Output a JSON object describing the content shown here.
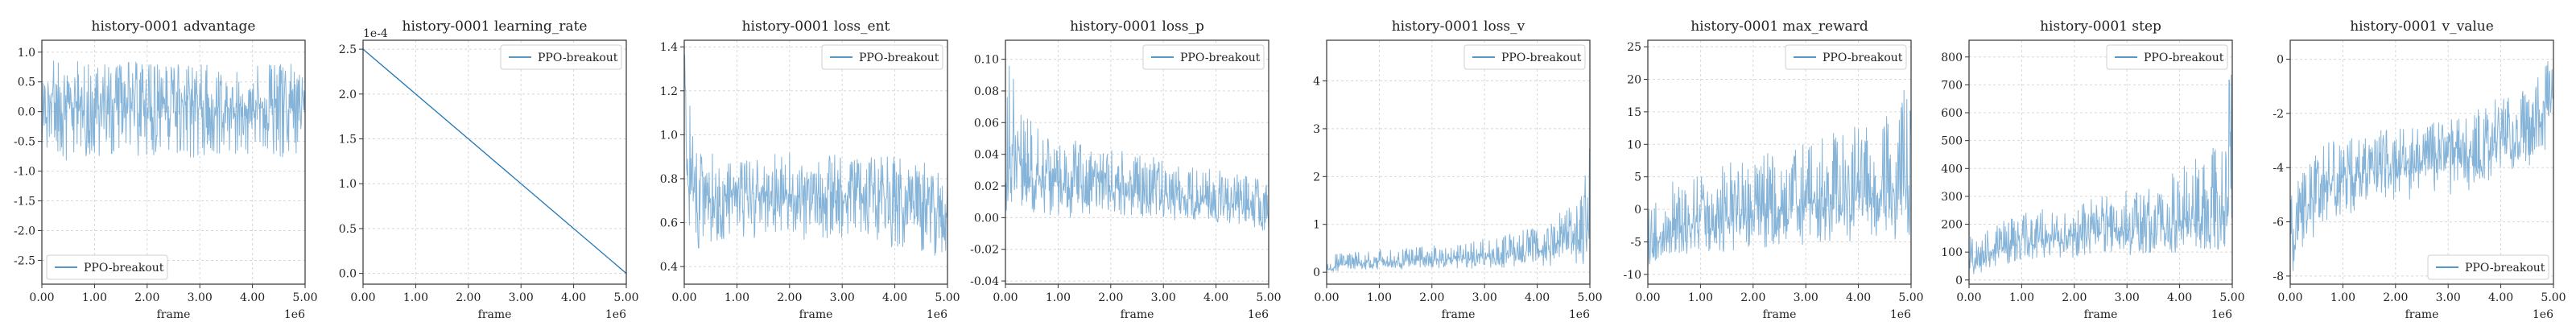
{
  "colors": {
    "series": "#1f77b4",
    "fill": "#7fb0d6",
    "frame": "#333333",
    "grid": "#d8d8d8"
  },
  "chart_data": [
    {
      "type": "line",
      "title": "history-0001 advantage",
      "xlabel": "frame",
      "x_offset_text": "1e6",
      "y_offset_text": "",
      "xlim": [
        0,
        5
      ],
      "ylim": [
        -2.9,
        1.2
      ],
      "x_ticks": [
        0,
        1,
        2,
        3,
        4,
        5
      ],
      "x_tick_labels": [
        "0.00",
        "1.00",
        "2.00",
        "3.00",
        "4.00",
        "5.00"
      ],
      "y_ticks": [
        -2.5,
        -2.0,
        -1.5,
        -1.0,
        -0.5,
        0.0,
        0.5,
        1.0
      ],
      "y_tick_labels": [
        "-2.5",
        "-2.0",
        "-1.5",
        "-1.0",
        "-0.5",
        "0.0",
        "0.5",
        "1.0"
      ],
      "legend": {
        "label": "PPO-breakout",
        "loc": "lower-left"
      },
      "grid": true,
      "series": [
        {
          "name": "PPO-breakout",
          "x": [
            0,
            0.25,
            0.5,
            0.75,
            1,
            1.25,
            1.5,
            1.75,
            2,
            2.25,
            2.5,
            2.75,
            3,
            3.25,
            3.5,
            3.75,
            4,
            4.25,
            4.5,
            4.75,
            5
          ],
          "mean": [
            0.05,
            0.15,
            0.1,
            0.1,
            0.1,
            0.12,
            0.1,
            0.1,
            0.1,
            0.1,
            0.08,
            0.1,
            0.1,
            0.1,
            0.08,
            0.1,
            0.1,
            0.08,
            0.1,
            0.1,
            0.1
          ],
          "low": [
            -0.6,
            -0.7,
            -0.9,
            -0.8,
            -0.8,
            -0.7,
            -0.8,
            -0.8,
            -0.8,
            -0.7,
            -0.8,
            -0.8,
            -0.8,
            -0.7,
            -0.8,
            -0.8,
            -0.8,
            -0.7,
            -0.8,
            -0.8,
            -0.7
          ],
          "high": [
            0.6,
            0.9,
            0.8,
            0.9,
            0.8,
            0.8,
            0.8,
            0.9,
            0.8,
            0.8,
            0.9,
            0.8,
            0.8,
            0.8,
            0.8,
            0.8,
            0.8,
            0.8,
            0.8,
            0.8,
            0.7
          ]
        }
      ]
    },
    {
      "type": "line",
      "title": "history-0001 learning_rate",
      "xlabel": "frame",
      "x_offset_text": "1e6",
      "y_offset_text": "1e-4",
      "xlim": [
        0,
        5
      ],
      "ylim": [
        -0.12,
        2.6
      ],
      "x_ticks": [
        0,
        1,
        2,
        3,
        4,
        5
      ],
      "x_tick_labels": [
        "0.00",
        "1.00",
        "2.00",
        "3.00",
        "4.00",
        "5.00"
      ],
      "y_ticks": [
        0.0,
        0.5,
        1.0,
        1.5,
        2.0,
        2.5
      ],
      "y_tick_labels": [
        "0.0",
        "0.5",
        "1.0",
        "1.5",
        "2.0",
        "2.5"
      ],
      "legend": {
        "label": "PPO-breakout",
        "loc": "upper-right"
      },
      "grid": true,
      "series": [
        {
          "name": "PPO-breakout",
          "x": [
            0,
            5
          ],
          "mean": [
            2.5,
            0.0
          ],
          "low": [
            2.5,
            0.0
          ],
          "high": [
            2.5,
            0.0
          ]
        }
      ]
    },
    {
      "type": "line",
      "title": "history-0001 loss_ent",
      "xlabel": "frame",
      "x_offset_text": "1e6",
      "y_offset_text": "",
      "xlim": [
        0,
        5
      ],
      "ylim": [
        0.32,
        1.43
      ],
      "x_ticks": [
        0,
        1,
        2,
        3,
        4,
        5
      ],
      "x_tick_labels": [
        "0.00",
        "1.00",
        "2.00",
        "3.00",
        "4.00",
        "5.00"
      ],
      "y_ticks": [
        0.4,
        0.6,
        0.8,
        1.0,
        1.2,
        1.4
      ],
      "y_tick_labels": [
        "0.4",
        "0.6",
        "0.8",
        "1.0",
        "1.2",
        "1.4"
      ],
      "legend": {
        "label": "PPO-breakout",
        "loc": "upper-right"
      },
      "grid": true,
      "series": [
        {
          "name": "PPO-breakout",
          "x": [
            0,
            0.05,
            0.25,
            0.5,
            0.75,
            1,
            1.25,
            1.5,
            1.75,
            2,
            2.25,
            2.5,
            2.75,
            3,
            3.25,
            3.5,
            3.75,
            4,
            4.25,
            4.5,
            4.75,
            5
          ],
          "mean": [
            1.3,
            0.9,
            0.78,
            0.72,
            0.72,
            0.74,
            0.73,
            0.74,
            0.74,
            0.73,
            0.72,
            0.74,
            0.73,
            0.72,
            0.73,
            0.72,
            0.71,
            0.7,
            0.7,
            0.68,
            0.67,
            0.62
          ],
          "low": [
            1.2,
            0.55,
            0.45,
            0.5,
            0.5,
            0.55,
            0.52,
            0.55,
            0.55,
            0.55,
            0.52,
            0.55,
            0.52,
            0.5,
            0.55,
            0.5,
            0.5,
            0.48,
            0.48,
            0.45,
            0.42,
            0.35
          ],
          "high": [
            1.4,
            1.35,
            0.95,
            0.92,
            0.9,
            0.9,
            0.9,
            0.9,
            0.92,
            0.92,
            0.9,
            0.92,
            0.92,
            0.9,
            0.9,
            0.9,
            0.9,
            0.9,
            0.88,
            0.88,
            0.85,
            0.78
          ]
        }
      ]
    },
    {
      "type": "line",
      "title": "history-0001 loss_p",
      "xlabel": "frame",
      "x_offset_text": "1e6",
      "y_offset_text": "",
      "xlim": [
        0,
        5
      ],
      "ylim": [
        -0.042,
        0.112
      ],
      "x_ticks": [
        0,
        1,
        2,
        3,
        4,
        5
      ],
      "x_tick_labels": [
        "0.00",
        "1.00",
        "2.00",
        "3.00",
        "4.00",
        "5.00"
      ],
      "y_ticks": [
        -0.04,
        -0.02,
        0.0,
        0.02,
        0.04,
        0.06,
        0.08,
        0.1
      ],
      "y_tick_labels": [
        "-0.04",
        "-0.02",
        "0.00",
        "0.02",
        "0.04",
        "0.06",
        "0.08",
        "0.10"
      ],
      "legend": {
        "label": "PPO-breakout",
        "loc": "upper-right"
      },
      "grid": true,
      "series": [
        {
          "name": "PPO-breakout",
          "x": [
            0,
            0.1,
            0.25,
            0.5,
            0.75,
            1,
            1.25,
            1.5,
            1.75,
            2,
            2.25,
            2.5,
            2.75,
            3,
            3.25,
            3.5,
            3.75,
            4,
            4.25,
            4.5,
            4.75,
            5
          ],
          "mean": [
            0.03,
            0.05,
            0.035,
            0.025,
            0.024,
            0.022,
            0.021,
            0.02,
            0.019,
            0.018,
            0.017,
            0.016,
            0.015,
            0.014,
            0.013,
            0.012,
            0.011,
            0.01,
            0.009,
            0.008,
            0.006,
            0.003
          ],
          "low": [
            0.0,
            0.005,
            0.0,
            0.002,
            0.0,
            0.002,
            0.0,
            0.002,
            0.0,
            0.002,
            0.001,
            0.0,
            0.001,
            0.0,
            -0.002,
            -0.002,
            -0.003,
            -0.004,
            -0.004,
            -0.005,
            -0.006,
            -0.01
          ],
          "high": [
            0.09,
            0.105,
            0.075,
            0.06,
            0.055,
            0.05,
            0.05,
            0.045,
            0.045,
            0.045,
            0.042,
            0.04,
            0.04,
            0.038,
            0.036,
            0.034,
            0.032,
            0.03,
            0.03,
            0.028,
            0.025,
            0.02
          ]
        }
      ]
    },
    {
      "type": "line",
      "title": "history-0001 loss_v",
      "xlabel": "frame",
      "x_offset_text": "1e6",
      "y_offset_text": "",
      "xlim": [
        0,
        5
      ],
      "ylim": [
        -0.25,
        4.85
      ],
      "x_ticks": [
        0,
        1,
        2,
        3,
        4,
        5
      ],
      "x_tick_labels": [
        "0.00",
        "1.00",
        "2.00",
        "3.00",
        "4.00",
        "5.00"
      ],
      "y_ticks": [
        0,
        1,
        2,
        3,
        4
      ],
      "y_tick_labels": [
        "0",
        "1",
        "2",
        "3",
        "4"
      ],
      "legend": {
        "label": "PPO-breakout",
        "loc": "upper-right"
      },
      "grid": true,
      "series": [
        {
          "name": "PPO-breakout",
          "x": [
            0,
            0.25,
            0.5,
            0.75,
            1,
            1.25,
            1.5,
            1.75,
            2,
            2.25,
            2.5,
            2.75,
            3,
            3.25,
            3.5,
            3.75,
            4,
            4.25,
            4.5,
            4.75,
            5
          ],
          "mean": [
            0.05,
            0.15,
            0.2,
            0.2,
            0.22,
            0.22,
            0.24,
            0.25,
            0.26,
            0.27,
            0.28,
            0.3,
            0.32,
            0.34,
            0.37,
            0.4,
            0.45,
            0.5,
            0.6,
            0.7,
            1.0
          ],
          "low": [
            0.0,
            0.03,
            0.05,
            0.05,
            0.05,
            0.05,
            0.06,
            0.06,
            0.06,
            0.07,
            0.07,
            0.08,
            0.08,
            0.09,
            0.1,
            0.1,
            0.12,
            0.12,
            0.15,
            0.15,
            0.2
          ],
          "high": [
            0.4,
            0.4,
            0.45,
            0.45,
            0.48,
            0.5,
            0.52,
            0.55,
            0.55,
            0.58,
            0.6,
            0.65,
            0.7,
            0.75,
            0.8,
            0.9,
            1.0,
            1.1,
            1.3,
            1.6,
            2.7
          ]
        }
      ]
    },
    {
      "type": "line",
      "title": "history-0001 max_reward",
      "xlabel": "frame",
      "x_offset_text": "1e6",
      "y_offset_text": "",
      "xlim": [
        0,
        5
      ],
      "ylim": [
        -11.5,
        26
      ],
      "x_ticks": [
        0,
        1,
        2,
        3,
        4,
        5
      ],
      "x_tick_labels": [
        "0.00",
        "1.00",
        "2.00",
        "3.00",
        "4.00",
        "5.00"
      ],
      "y_ticks": [
        -10,
        -5,
        0,
        5,
        10,
        15,
        20,
        25
      ],
      "y_tick_labels": [
        "-10",
        "-5",
        "0",
        "5",
        "10",
        "15",
        "20",
        "25"
      ],
      "legend": {
        "label": "PPO-breakout",
        "loc": "upper-right"
      },
      "grid": true,
      "series": [
        {
          "name": "PPO-breakout",
          "x": [
            0,
            0.25,
            0.5,
            0.75,
            1,
            1.25,
            1.5,
            1.75,
            2,
            2.25,
            2.5,
            2.75,
            3,
            3.25,
            3.5,
            3.75,
            4,
            4.25,
            4.5,
            4.75,
            5
          ],
          "mean": [
            -6,
            -4,
            -2.5,
            -2,
            -1.5,
            -1,
            -0.8,
            -0.5,
            -0.2,
            0,
            0.3,
            0.5,
            0.8,
            1.0,
            1.3,
            1.6,
            2.0,
            2.3,
            2.7,
            3.0,
            3.5
          ],
          "low": [
            -9,
            -8,
            -7,
            -7,
            -7,
            -6.5,
            -6.5,
            -6,
            -6,
            -6,
            -5.5,
            -5.5,
            -5.5,
            -5.5,
            -5,
            -5,
            -5,
            -5,
            -5,
            -5,
            -5
          ],
          "high": [
            0,
            3,
            5,
            5,
            6,
            6,
            7,
            8,
            8,
            9,
            9,
            10,
            10,
            11,
            12,
            12,
            13,
            14,
            15,
            16,
            23
          ]
        }
      ]
    },
    {
      "type": "line",
      "title": "history-0001 step",
      "xlabel": "frame",
      "x_offset_text": "1e6",
      "y_offset_text": "",
      "xlim": [
        0,
        5
      ],
      "ylim": [
        -15,
        860
      ],
      "x_ticks": [
        0,
        1,
        2,
        3,
        4,
        5
      ],
      "x_tick_labels": [
        "0.00",
        "1.00",
        "2.00",
        "3.00",
        "4.00",
        "5.00"
      ],
      "y_ticks": [
        0,
        100,
        200,
        300,
        400,
        500,
        600,
        700,
        800
      ],
      "y_tick_labels": [
        "0",
        "100",
        "200",
        "300",
        "400",
        "500",
        "600",
        "700",
        "800"
      ],
      "legend": {
        "label": "PPO-breakout",
        "loc": "upper-right"
      },
      "grid": true,
      "series": [
        {
          "name": "PPO-breakout",
          "x": [
            0,
            0.25,
            0.5,
            0.75,
            1,
            1.25,
            1.5,
            1.75,
            2,
            2.25,
            2.5,
            2.75,
            3,
            3.25,
            3.5,
            3.75,
            4,
            4.25,
            4.5,
            4.75,
            5
          ],
          "mean": [
            60,
            90,
            110,
            120,
            130,
            140,
            150,
            155,
            160,
            165,
            170,
            175,
            180,
            185,
            190,
            200,
            210,
            220,
            230,
            245,
            260
          ],
          "low": [
            10,
            30,
            50,
            60,
            65,
            70,
            75,
            80,
            80,
            85,
            85,
            90,
            90,
            90,
            95,
            95,
            100,
            100,
            105,
            110,
            110
          ],
          "high": [
            150,
            200,
            220,
            230,
            240,
            250,
            260,
            270,
            280,
            290,
            300,
            310,
            320,
            340,
            360,
            380,
            400,
            430,
            460,
            500,
            800
          ]
        }
      ]
    },
    {
      "type": "line",
      "title": "history-0001 v_value",
      "xlabel": "frame",
      "x_offset_text": "1e6",
      "y_offset_text": "",
      "xlim": [
        0,
        5
      ],
      "ylim": [
        -8.3,
        0.7
      ],
      "x_ticks": [
        0,
        1,
        2,
        3,
        4,
        5
      ],
      "x_tick_labels": [
        "0.00",
        "1.00",
        "2.00",
        "3.00",
        "4.00",
        "5.00"
      ],
      "y_ticks": [
        -8,
        -6,
        -4,
        -2,
        0
      ],
      "y_tick_labels": [
        "-8",
        "-6",
        "-4",
        "-2",
        "0"
      ],
      "legend": {
        "label": "PPO-breakout",
        "loc": "lower-right"
      },
      "grid": true,
      "series": [
        {
          "name": "PPO-breakout",
          "x": [
            0,
            0.25,
            0.5,
            0.75,
            1,
            1.25,
            1.5,
            1.75,
            2,
            2.25,
            2.5,
            2.75,
            3,
            3.25,
            3.5,
            3.75,
            4,
            4.25,
            4.5,
            4.75,
            5
          ],
          "mean": [
            -6.5,
            -5.8,
            -5.0,
            -4.6,
            -4.3,
            -4.2,
            -4.1,
            -4.0,
            -4.0,
            -3.9,
            -3.8,
            -3.7,
            -3.6,
            -3.5,
            -3.4,
            -3.2,
            -3.0,
            -2.8,
            -2.6,
            -2.2,
            -1.5
          ],
          "low": [
            -8.0,
            -7.2,
            -6.5,
            -6.0,
            -5.8,
            -5.6,
            -5.5,
            -5.4,
            -5.3,
            -5.2,
            -5.1,
            -5.0,
            -5.0,
            -4.9,
            -4.8,
            -4.6,
            -4.4,
            -4.2,
            -4.0,
            -3.6,
            -3.0
          ],
          "high": [
            -4.8,
            -4.0,
            -3.4,
            -3.0,
            -2.8,
            -2.8,
            -2.7,
            -2.6,
            -2.6,
            -2.5,
            -2.4,
            -2.3,
            -2.2,
            -2.0,
            -1.8,
            -1.6,
            -1.4,
            -1.2,
            -1.0,
            -0.5,
            0.3
          ]
        }
      ]
    }
  ]
}
